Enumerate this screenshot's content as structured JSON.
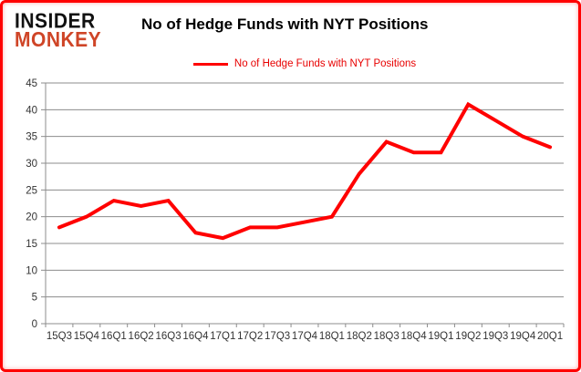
{
  "header": {
    "logo_line1": "INSIDER",
    "logo_line2": "MONKEY",
    "title": "No of Hedge Funds with NYT Positions"
  },
  "legend": {
    "label": "No of Hedge Funds with NYT Positions"
  },
  "colors": {
    "line": "#ff0000",
    "legend_text": "#e80000",
    "grid": "#8c8c8c",
    "axis_text": "#333333",
    "title_text": "#000000",
    "logo_black": "#111111",
    "logo_red": "#cf4527",
    "frame_border": "#ff0000"
  },
  "chart_data": {
    "type": "line",
    "title": "No of Hedge Funds with NYT Positions",
    "categories": [
      "15Q3",
      "15Q4",
      "16Q1",
      "16Q2",
      "16Q3",
      "16Q4",
      "17Q1",
      "17Q2",
      "17Q3",
      "17Q4",
      "18Q1",
      "18Q2",
      "18Q3",
      "18Q4",
      "19Q1",
      "19Q2",
      "19Q3",
      "19Q4",
      "20Q1"
    ],
    "series": [
      {
        "name": "No of Hedge Funds with NYT Positions",
        "values": [
          18,
          20,
          23,
          22,
          23,
          17,
          16,
          18,
          18,
          19,
          20,
          28,
          34,
          32,
          32,
          41,
          38,
          35,
          33
        ]
      }
    ],
    "xlabel": "",
    "ylabel": "",
    "ylim": [
      0,
      45
    ],
    "ytick_step": 5,
    "grid": "horizontal",
    "legend_position": "top"
  }
}
